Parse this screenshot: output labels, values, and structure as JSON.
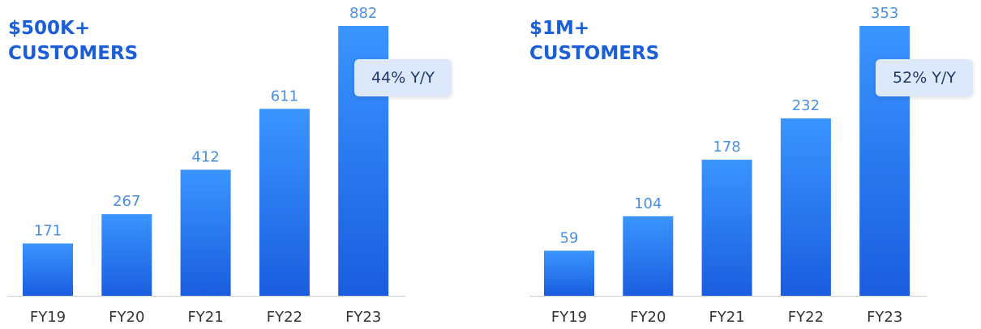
{
  "chart_data": [
    {
      "type": "bar",
      "title": "$500K+ CUSTOMERS",
      "annotation": "44% Y/Y",
      "categories": [
        "FY19",
        "FY20",
        "FY21",
        "FY22",
        "FY23"
      ],
      "values": [
        171,
        267,
        412,
        611,
        882
      ],
      "color": "#1f6ff0",
      "ylim": [
        0,
        882
      ]
    },
    {
      "type": "bar",
      "title": "$1M+ CUSTOMERS",
      "annotation": "52% Y/Y",
      "categories": [
        "FY19",
        "FY20",
        "FY21",
        "FY22",
        "FY23"
      ],
      "values": [
        59,
        104,
        178,
        232,
        353
      ],
      "color": "#1f6ff0",
      "ylim": [
        0,
        353
      ]
    }
  ]
}
